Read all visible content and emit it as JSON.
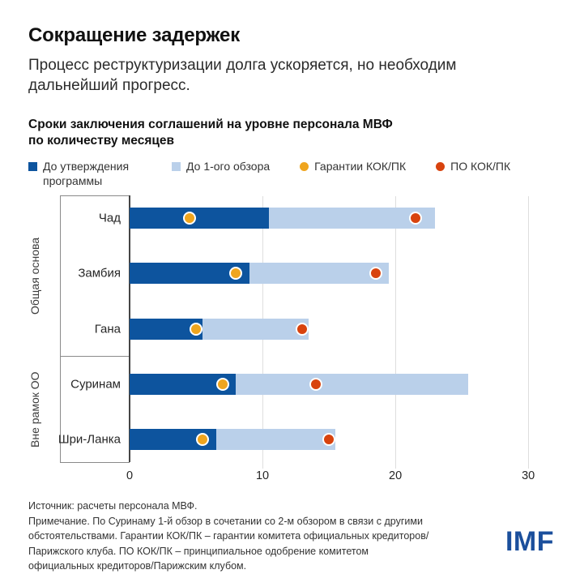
{
  "header": {
    "title": "Сокращение задержек",
    "subtitle": "Процесс реструктуризации долга ускоряется, но необходим дальнейший прогресс."
  },
  "chart": {
    "heading_line1": "Сроки заключения соглашений на уровне персонала МВФ",
    "heading_line2": "по количеству месяцев"
  },
  "legend": [
    {
      "label": "До утверждения программы",
      "marker": "square",
      "color": "#0d549e"
    },
    {
      "label": "До 1-ого обзора",
      "marker": "square",
      "color": "#bad0ea"
    },
    {
      "label": "Гарантии КОК/ПК",
      "marker": "circle",
      "color": "#efa51e"
    },
    {
      "label": "ПО КОК/ПК",
      "marker": "circle",
      "color": "#d8430e"
    }
  ],
  "chart_data": {
    "type": "bar",
    "orientation": "horizontal",
    "stacked": true,
    "title": "Сроки заключения соглашений на уровне персонала МВФ по количеству месяцев",
    "unit": "месяцев",
    "xlim": [
      0,
      32
    ],
    "x_ticks": [
      0,
      10,
      20,
      30
    ],
    "grid": true,
    "legend_position": "top",
    "categories": [
      "Чад",
      "Замбия",
      "Гана",
      "Суринам",
      "Шри-Ланка"
    ],
    "groups": [
      {
        "label": "Общая основа",
        "categories": [
          "Чад",
          "Замбия",
          "Гана"
        ]
      },
      {
        "label": "Вне рамок ОО",
        "categories": [
          "Суринам",
          "Шри-Ланка"
        ]
      }
    ],
    "series_names": [
      "До утверждения программы",
      "До 1-ого обзора",
      "Гарантии КОК/ПК",
      "ПО КОК/ПК"
    ],
    "rows": [
      {
        "category": "Чад",
        "group": "Общая основа",
        "months_to_program_approval": 10.5,
        "months_to_first_review": 23,
        "coc_pc_guarantee_month": 4.5,
        "coc_pc_aip_month": 21.5
      },
      {
        "category": "Замбия",
        "group": "Общая основа",
        "months_to_program_approval": 9,
        "months_to_first_review": 19.5,
        "coc_pc_guarantee_month": 8,
        "coc_pc_aip_month": 18.5
      },
      {
        "category": "Гана",
        "group": "Общая основа",
        "months_to_program_approval": 5.5,
        "months_to_first_review": 13.5,
        "coc_pc_guarantee_month": 5,
        "coc_pc_aip_month": 13
      },
      {
        "category": "Суринам",
        "group": "Вне рамок ОО",
        "months_to_program_approval": 8,
        "months_to_first_review": 25.5,
        "coc_pc_guarantee_month": 7,
        "coc_pc_aip_month": 14
      },
      {
        "category": "Шри-Ланка",
        "group": "Вне рамок ОО",
        "months_to_program_approval": 6.5,
        "months_to_first_review": 15.5,
        "coc_pc_guarantee_month": 5.5,
        "coc_pc_aip_month": 15
      }
    ]
  },
  "colors": {
    "bar_dark_blue": "#0d549e",
    "bar_light_blue": "#bad0ea",
    "dot_yellow": "#efa51e",
    "dot_orange_red": "#d8430e",
    "gridline": "#dedede",
    "logo_blue": "#1b4f9c"
  },
  "footnotes": {
    "lines": [
      "Источник: расчеты персонала МВФ.",
      "Примечание. По Суринаму 1-й обзор в сочетании со 2-м обзором в связи с другими",
      "обстоятельствами. Гарантии КОК/ПК – гарантии комитета официальных кредиторов/",
      "Парижского клуба. ПО КОК/ПК – принципиальное одобрение комитетом",
      "официальных кредиторов/Парижским клубом."
    ]
  },
  "logo_text": "IMF"
}
